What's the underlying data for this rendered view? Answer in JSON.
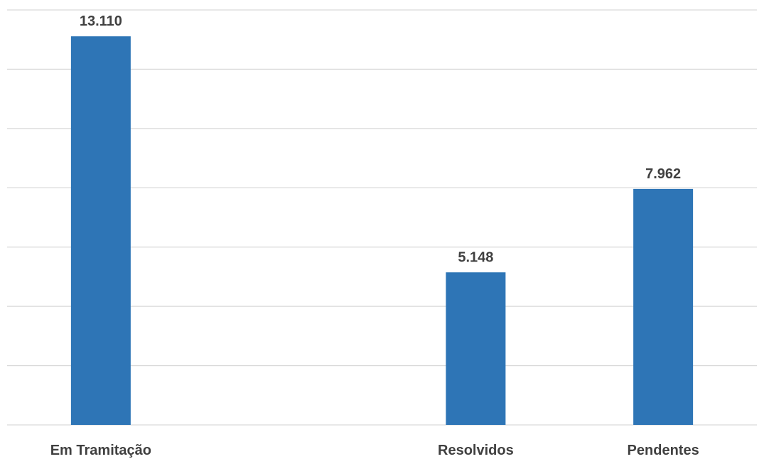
{
  "chart_data": {
    "type": "bar",
    "categories": [
      "Em Tramitação",
      "",
      "Resolvidos",
      "Pendentes"
    ],
    "values": [
      13110,
      null,
      5148,
      7962
    ],
    "value_labels": [
      "13.110",
      "",
      "5.148",
      "7.962"
    ],
    "title": "",
    "xlabel": "",
    "ylabel": "",
    "ylim": [
      0,
      14000
    ],
    "y_gridlines": [
      0,
      2000,
      4000,
      6000,
      8000,
      10000,
      12000,
      14000
    ],
    "grid": true,
    "legend": "none",
    "bar_color": "#2e75b6",
    "label_color": "#404040",
    "grid_color": "#d9d9d9"
  }
}
